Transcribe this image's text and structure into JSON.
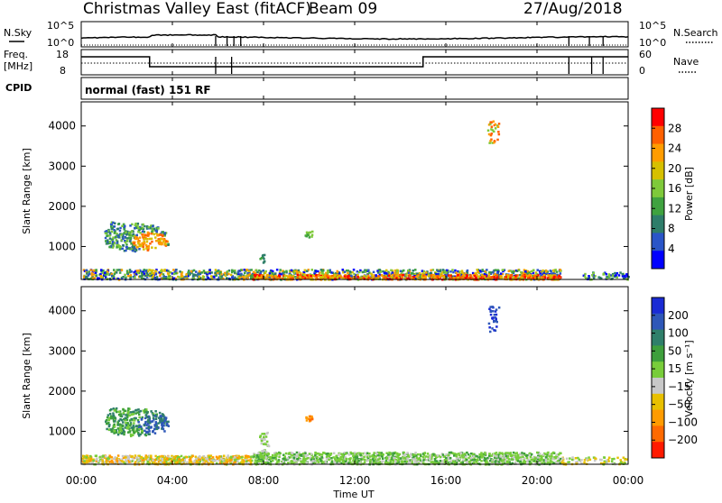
{
  "header": {
    "title": "Christmas Valley East (fitACF)",
    "beam": "Beam 09",
    "date": "27/Aug/2018"
  },
  "panels": {
    "nsky": {
      "label": "N.Sky",
      "right_label": "N.Search",
      "left_ticks": [
        "10^5",
        "10^0"
      ],
      "right_ticks": [
        "10^5",
        "10^0"
      ]
    },
    "freq": {
      "label_1": "Freq.",
      "label_2": "[MHz]",
      "right_label": "Nave",
      "left_ticks": [
        "18",
        "8"
      ],
      "right_ticks": [
        "60",
        "0"
      ]
    },
    "cpid": {
      "label": "CPID",
      "value": "normal (fast) 151 RF"
    }
  },
  "axes": {
    "ylabel": "Slant Range [km]",
    "xlabel": "Time UT",
    "x_ticks": [
      "00:00",
      "04:00",
      "08:00",
      "12:00",
      "16:00",
      "20:00",
      "00:00"
    ],
    "y_ticks": [
      "1000",
      "2000",
      "3000",
      "4000"
    ]
  },
  "colorbars": {
    "power": {
      "label": "Power [dB]",
      "ticks": [
        "4",
        "8",
        "12",
        "16",
        "20",
        "24",
        "28"
      ],
      "colors": [
        "#0000ff",
        "#2a55c8",
        "#2e7d6a",
        "#3fa23f",
        "#7ec93a",
        "#d6c000",
        "#ff9c00",
        "#ff6000",
        "#ff0000"
      ]
    },
    "velocity": {
      "label": "Velocity [m s⁻¹]",
      "ticks": [
        "200",
        "100",
        "50",
        "15",
        "−15",
        "−50",
        "−100",
        "−200"
      ],
      "colors": [
        "#1a2bd4",
        "#2e57b8",
        "#2f7f6a",
        "#3e9f3c",
        "#78cd3a",
        "#c8c8c8",
        "#e8c000",
        "#ff9b00",
        "#ff6a00",
        "#ff1a00"
      ]
    }
  },
  "chart_data": {
    "type": "heatmap",
    "title": "Christmas Valley East (fitACF)",
    "xlabel": "Time UT",
    "ylabel": "Slant Range [km]",
    "xlim": [
      "00:00",
      "24:00"
    ],
    "ylim": [
      180,
      4600
    ],
    "series": [
      {
        "name": "Power [dB]",
        "zlim": [
          0,
          32
        ]
      },
      {
        "name": "Velocity [m s⁻¹]",
        "zlim": [
          -250,
          250
        ]
      }
    ]
  }
}
